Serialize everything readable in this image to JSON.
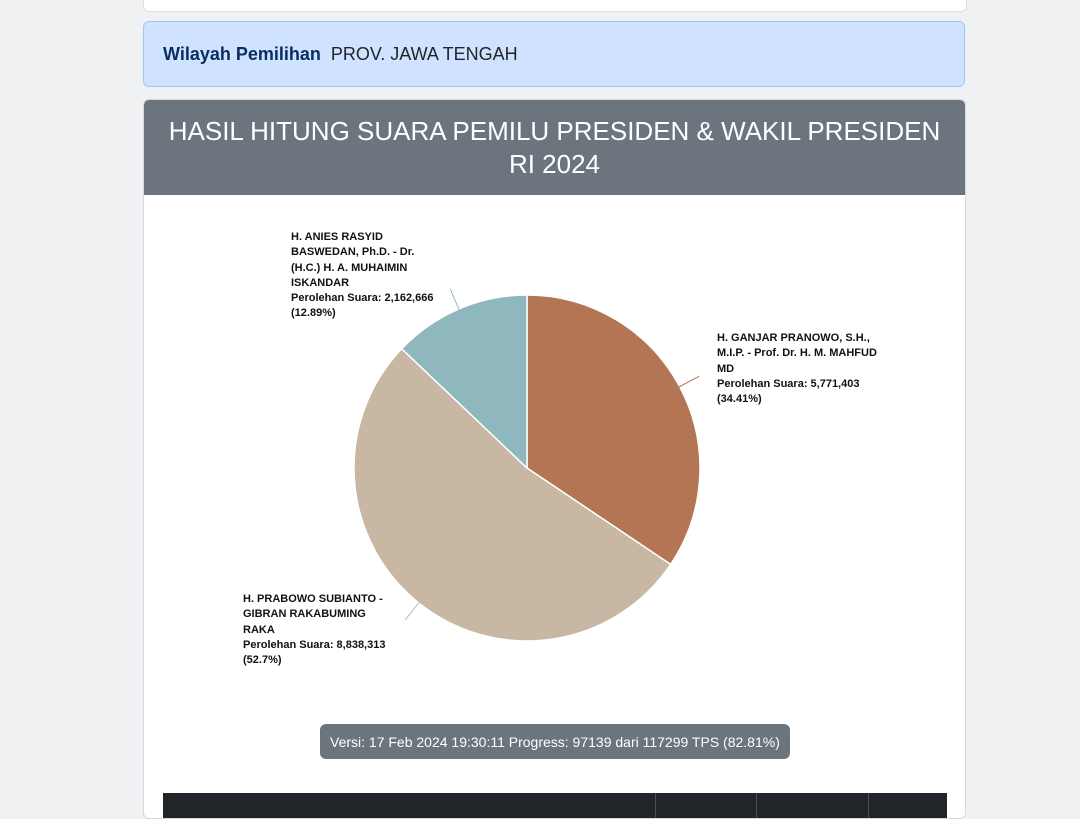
{
  "region": {
    "label": "Wilayah Pemilihan",
    "value": "PROV. JAWA TENGAH"
  },
  "card": {
    "title": "HASIL HITUNG SUARA PEMILU PRESIDEN & WAKIL PRESIDEN RI 2024"
  },
  "chart_data": {
    "type": "pie",
    "slices": [
      {
        "name": "H. GANJAR PRANOWO, S.H., M.I.P. - Prof. Dr. H. M. MAHFUD MD",
        "value": 5771403,
        "percent": 34.41,
        "color": "#b37553",
        "value_text": "Perolehan Suara: 5,771,403",
        "percent_text": "(34.41%)"
      },
      {
        "name": "H. PRABOWO SUBIANTO - GIBRAN RAKABUMING RAKA",
        "value": 8838313,
        "percent": 52.7,
        "color": "#c8b7a3",
        "value_text": "Perolehan Suara: 8,838,313",
        "percent_text": "(52.7%)"
      },
      {
        "name": "H. ANIES RASYID BASWEDAN, Ph.D. - Dr. (H.C.) H. A. MUHAIMIN ISKANDAR",
        "value": 2162666,
        "percent": 12.89,
        "color": "#8fb8be",
        "value_text": "Perolehan Suara: 2,162,666",
        "percent_text": "(12.89%)"
      }
    ]
  },
  "version": "Versi: 17 Feb 2024 19:30:11 Progress: 97139 dari 117299 TPS (82.81%)"
}
